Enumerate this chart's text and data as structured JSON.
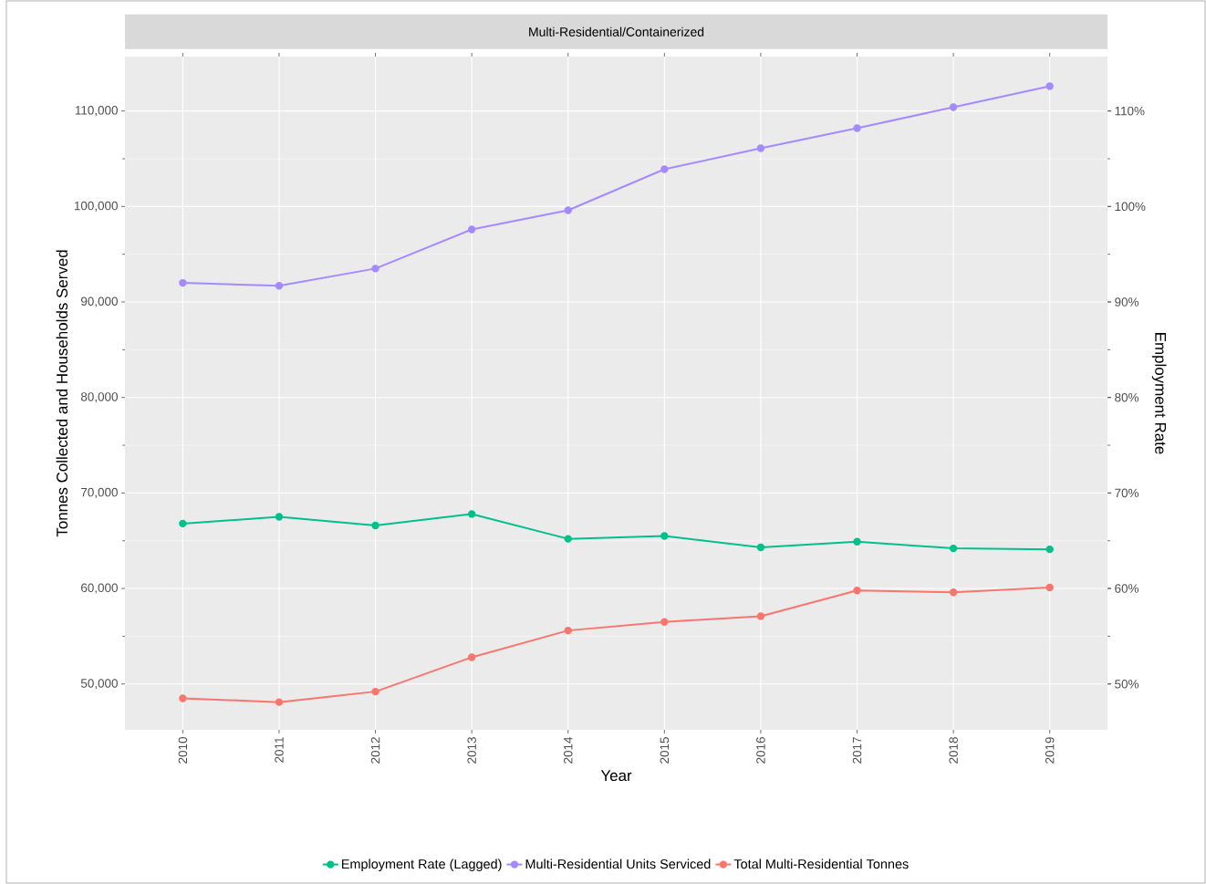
{
  "chart_data": {
    "type": "line",
    "title": "Multi-Residential/Containerized",
    "xlabel": "Year",
    "ylabel": "Tonnes Collected and Households Served",
    "y2label": "Employment Rate",
    "categories": [
      "2010",
      "2011",
      "2012",
      "2013",
      "2014",
      "2015",
      "2016",
      "2017",
      "2018",
      "2019"
    ],
    "series": [
      {
        "name": "Employment Rate (Lagged)",
        "color": "#00C08B",
        "axis": "y2",
        "values": [
          66.8,
          67.5,
          66.6,
          67.8,
          65.2,
          65.5,
          64.3,
          64.9,
          64.2,
          64.1
        ]
      },
      {
        "name": "Multi-Residential Units Serviced",
        "color": "#A58AFF",
        "values": [
          92000,
          91700,
          93500,
          97600,
          99600,
          103900,
          106100,
          108200,
          110400,
          112600
        ]
      },
      {
        "name": "Total Multi-Residential Tonnes",
        "color": "#F8766D",
        "values": [
          48500,
          48100,
          49200,
          52800,
          55600,
          56500,
          57100,
          59800,
          59600,
          60100
        ]
      }
    ],
    "ylim": [
      45200,
      115700
    ],
    "yticks": [
      {
        "value": 50000,
        "label": "50,000"
      },
      {
        "value": 60000,
        "label": "60,000"
      },
      {
        "value": 70000,
        "label": "70,000"
      },
      {
        "value": 80000,
        "label": "80,000"
      },
      {
        "value": 90000,
        "label": "90,000"
      },
      {
        "value": 100000,
        "label": "100,000"
      },
      {
        "value": 110000,
        "label": "110,000"
      }
    ],
    "y2lim": [
      45.2,
      115.7
    ],
    "y2ticks": [
      {
        "value": 50,
        "label": "50%"
      },
      {
        "value": 60,
        "label": "60%"
      },
      {
        "value": 70,
        "label": "70%"
      },
      {
        "value": 80,
        "label": "80%"
      },
      {
        "value": 90,
        "label": "90%"
      },
      {
        "value": 100,
        "label": "100%"
      },
      {
        "value": 110,
        "label": "110%"
      }
    ],
    "grid": true,
    "legend": "bottom",
    "marker": "circle",
    "line_style": "solid"
  }
}
